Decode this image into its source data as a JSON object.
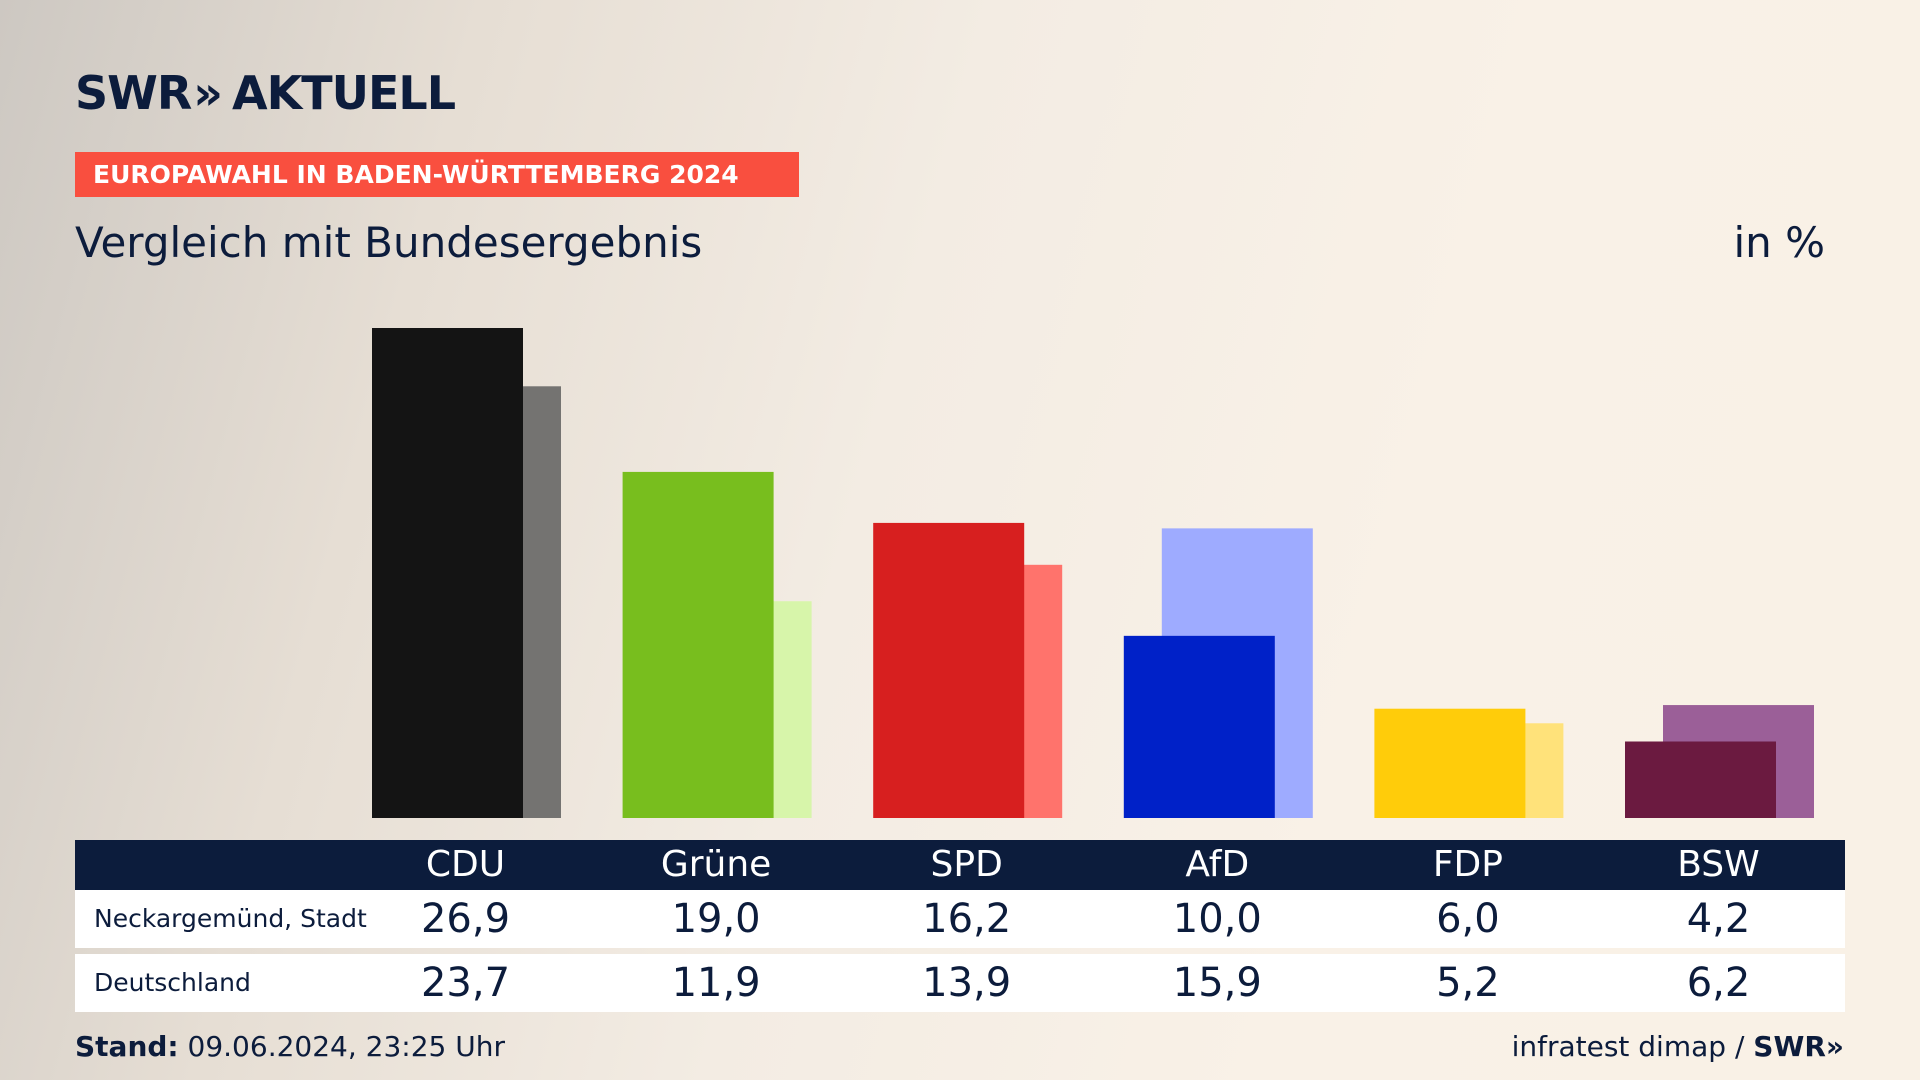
{
  "header": {
    "logo_text": "SWR",
    "logo_chevrons": "»",
    "logo_suffix": "AKTUELL",
    "kicker": "EUROPAWAHL IN BADEN-WÜRTTEMBERG 2024",
    "title": "Vergleich mit Bundesergebnis",
    "unit": "in %"
  },
  "footer": {
    "stand_label": "Stand:",
    "stand_value": "09.06.2024, 23:25 Uhr",
    "source": "infratest dimap /",
    "source_logo": "SWR»"
  },
  "table": {
    "row_labels": [
      "Neckargemünd, Stadt",
      "Deutschland"
    ]
  },
  "chart_data": {
    "type": "bar",
    "categories": [
      "CDU",
      "Grüne",
      "SPD",
      "AfD",
      "FDP",
      "BSW"
    ],
    "series": [
      {
        "name": "Neckargemünd, Stadt",
        "values": [
          26.9,
          19.0,
          16.2,
          10.0,
          6.0,
          4.2
        ],
        "labels": [
          "26,9",
          "19,0",
          "16,2",
          "10,0",
          "6,0",
          "4,2"
        ]
      },
      {
        "name": "Deutschland",
        "values": [
          23.7,
          11.9,
          13.9,
          15.9,
          5.2,
          6.2
        ],
        "labels": [
          "23,7",
          "11,9",
          "13,9",
          "15,9",
          "5,2",
          "6,2"
        ]
      }
    ],
    "colors": {
      "local": [
        "#141414",
        "#78be1e",
        "#d71f1f",
        "#0021c8",
        "#ffcc0a",
        "#6b1a40"
      ],
      "national": [
        "#747371",
        "#d7f5aa",
        "#ff736c",
        "#9eabff",
        "#ffe27a",
        "#9b5f98"
      ]
    },
    "ylim": [
      0,
      26.9
    ],
    "grid": false,
    "legend": "none"
  }
}
